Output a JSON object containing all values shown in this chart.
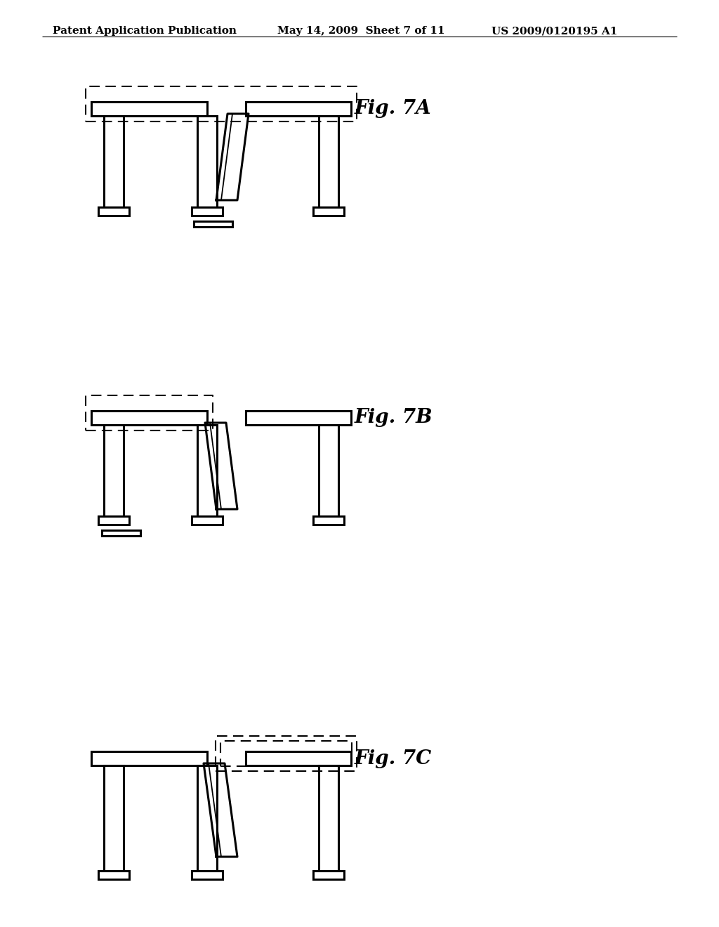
{
  "header_left": "Patent Application Publication",
  "header_mid": "May 14, 2009  Sheet 7 of 11",
  "header_right": "US 2009/0120195 A1",
  "fig_labels": [
    "Fig. 7A",
    "Fig. 7B",
    "Fig. 7C"
  ],
  "bg_color": "#ffffff",
  "line_color": "#000000",
  "lw": 2.2,
  "lw_thin": 1.3,
  "lw_dash": 1.5
}
